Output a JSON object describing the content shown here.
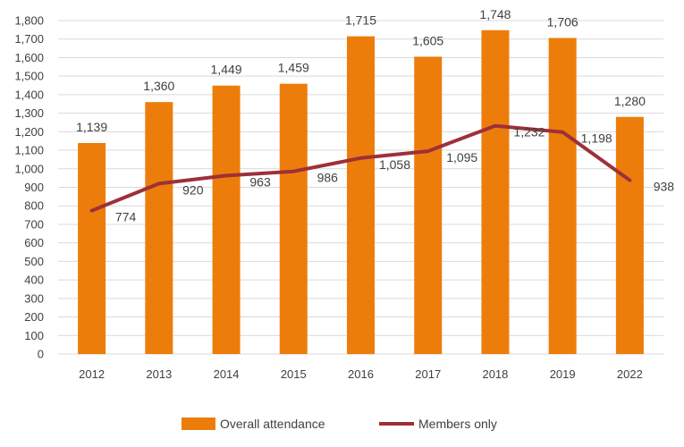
{
  "chart_data": {
    "type": "bar",
    "categories": [
      "2012",
      "2013",
      "2014",
      "2015",
      "2016",
      "2017",
      "2018",
      "2019",
      "2022"
    ],
    "series": [
      {
        "name": "Overall attendance",
        "type": "bar",
        "values": [
          1139,
          1360,
          1449,
          1459,
          1715,
          1605,
          1748,
          1706,
          1280
        ],
        "labels": [
          "1,139",
          "1,360",
          "1,449",
          "1,459",
          "1,715",
          "1,605",
          "1,748",
          "1,706",
          "1,280"
        ],
        "color": "#ED7D0A"
      },
      {
        "name": "Members only",
        "type": "line",
        "values": [
          774,
          920,
          963,
          986,
          1058,
          1095,
          1232,
          1198,
          938
        ],
        "labels": [
          "774",
          "920",
          "963",
          "986",
          "1,058",
          "1,095",
          "1,232",
          "1,198",
          "938"
        ],
        "color": "#9E3039"
      }
    ],
    "y_ticks": [
      "0",
      "100",
      "200",
      "300",
      "400",
      "500",
      "600",
      "700",
      "800",
      "900",
      "1,000",
      "1,100",
      "1,200",
      "1,300",
      "1,400",
      "1,500",
      "1,600",
      "1,700",
      "1,800"
    ],
    "ylim": [
      0,
      1800
    ],
    "grid": true,
    "legend_position": "bottom",
    "title": "",
    "xlabel": "",
    "ylabel": ""
  }
}
